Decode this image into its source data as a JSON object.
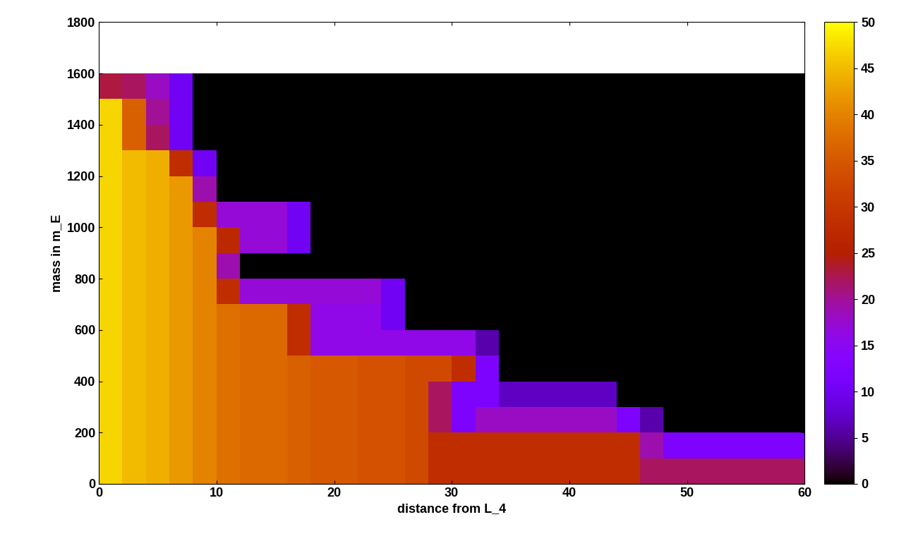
{
  "chart_data": {
    "type": "heatmap",
    "x_label": "distance from L_4",
    "y_label": "mass in m_E",
    "xlim": [
      0,
      60
    ],
    "xticks": [
      0,
      10,
      20,
      30,
      40,
      50,
      60
    ],
    "ylim": [
      0,
      1800
    ],
    "yticks": [
      0,
      200,
      400,
      600,
      800,
      1000,
      1200,
      1400,
      1600,
      1800
    ],
    "x_bins": [
      0,
      2,
      4,
      6,
      8,
      10,
      12,
      14,
      16,
      18,
      20,
      22,
      24,
      26,
      28,
      30,
      32,
      34,
      36,
      38,
      40,
      42,
      44,
      46,
      48,
      50,
      52,
      54,
      56,
      58,
      60
    ],
    "y_bins": [
      0,
      100,
      200,
      300,
      400,
      500,
      600,
      700,
      800,
      900,
      1000,
      1100,
      1200,
      1300,
      1400,
      1500,
      1600
    ],
    "cells": [
      [
        47,
        45,
        44,
        42,
        40,
        38,
        37,
        37,
        36,
        35,
        35,
        34,
        34,
        33,
        28,
        28,
        28,
        28,
        28,
        28,
        28,
        28,
        28,
        22,
        22,
        22,
        22,
        22,
        22,
        22
      ],
      [
        47,
        45,
        44,
        42,
        40,
        38,
        37,
        37,
        36,
        35,
        35,
        34,
        34,
        33,
        28,
        28,
        28,
        28,
        28,
        28,
        28,
        28,
        28,
        19,
        12,
        12,
        12,
        12,
        12,
        12
      ],
      [
        47,
        45,
        44,
        42,
        40,
        38,
        37,
        37,
        36,
        35,
        35,
        34,
        34,
        33,
        22,
        12,
        18,
        18,
        18,
        18,
        18,
        18,
        12,
        6,
        0,
        0,
        0,
        0,
        0,
        0
      ],
      [
        47,
        45,
        44,
        42,
        40,
        38,
        37,
        37,
        36,
        35,
        35,
        34,
        34,
        33,
        22,
        12,
        12,
        7,
        7,
        7,
        7,
        7,
        0,
        0,
        0,
        0,
        0,
        0,
        0,
        0
      ],
      [
        47,
        45,
        44,
        42,
        40,
        38,
        37,
        37,
        36,
        35,
        35,
        34,
        34,
        33,
        33,
        28,
        12,
        0,
        0,
        0,
        0,
        0,
        0,
        0,
        0,
        0,
        0,
        0,
        0,
        0
      ],
      [
        47,
        45,
        44,
        42,
        40,
        38,
        37,
        37,
        28,
        16,
        16,
        16,
        16,
        16,
        16,
        16,
        6,
        0,
        0,
        0,
        0,
        0,
        0,
        0,
        0,
        0,
        0,
        0,
        0,
        0
      ],
      [
        47,
        45,
        44,
        42,
        40,
        38,
        37,
        37,
        28,
        16,
        16,
        16,
        10,
        0,
        0,
        0,
        0,
        0,
        0,
        0,
        0,
        0,
        0,
        0,
        0,
        0,
        0,
        0,
        0,
        0
      ],
      [
        47,
        45,
        44,
        42,
        40,
        28,
        17,
        17,
        17,
        17,
        17,
        17,
        10,
        0,
        0,
        0,
        0,
        0,
        0,
        0,
        0,
        0,
        0,
        0,
        0,
        0,
        0,
        0,
        0,
        0
      ],
      [
        47,
        45,
        44,
        42,
        40,
        19,
        0,
        0,
        0,
        0,
        0,
        0,
        0,
        0,
        0,
        0,
        0,
        0,
        0,
        0,
        0,
        0,
        0,
        0,
        0,
        0,
        0,
        0,
        0,
        0
      ],
      [
        47,
        45,
        44,
        42,
        40,
        27,
        17,
        17,
        10,
        0,
        0,
        0,
        0,
        0,
        0,
        0,
        0,
        0,
        0,
        0,
        0,
        0,
        0,
        0,
        0,
        0,
        0,
        0,
        0,
        0
      ],
      [
        47,
        45,
        44,
        42,
        28,
        17,
        17,
        17,
        10,
        0,
        0,
        0,
        0,
        0,
        0,
        0,
        0,
        0,
        0,
        0,
        0,
        0,
        0,
        0,
        0,
        0,
        0,
        0,
        0,
        0
      ],
      [
        47,
        45,
        44,
        42,
        19,
        0,
        0,
        0,
        0,
        0,
        0,
        0,
        0,
        0,
        0,
        0,
        0,
        0,
        0,
        0,
        0,
        0,
        0,
        0,
        0,
        0,
        0,
        0,
        0,
        0
      ],
      [
        47,
        45,
        44,
        28,
        10,
        0,
        0,
        0,
        0,
        0,
        0,
        0,
        0,
        0,
        0,
        0,
        0,
        0,
        0,
        0,
        0,
        0,
        0,
        0,
        0,
        0,
        0,
        0,
        0,
        0
      ],
      [
        47,
        36,
        22,
        10,
        0,
        0,
        0,
        0,
        0,
        0,
        0,
        0,
        0,
        0,
        0,
        0,
        0,
        0,
        0,
        0,
        0,
        0,
        0,
        0,
        0,
        0,
        0,
        0,
        0,
        0
      ],
      [
        47,
        36,
        20,
        10,
        0,
        0,
        0,
        0,
        0,
        0,
        0,
        0,
        0,
        0,
        0,
        0,
        0,
        0,
        0,
        0,
        0,
        0,
        0,
        0,
        0,
        0,
        0,
        0,
        0,
        0
      ],
      [
        23,
        22,
        18,
        10,
        0,
        0,
        0,
        0,
        0,
        0,
        0,
        0,
        0,
        0,
        0,
        0,
        0,
        0,
        0,
        0,
        0,
        0,
        0,
        0,
        0,
        0,
        0,
        0,
        0,
        0
      ]
    ],
    "colorbar_range": [
      0,
      50
    ],
    "colorbar_ticks": [
      0,
      5,
      10,
      15,
      20,
      25,
      30,
      35,
      40,
      45,
      50
    ]
  }
}
